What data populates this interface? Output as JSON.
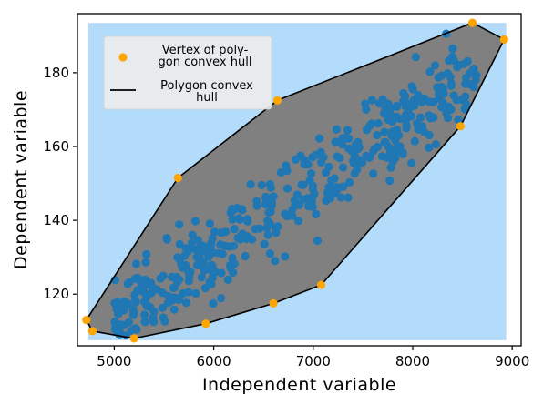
{
  "chart_data": {
    "type": "scatter",
    "xlabel": "Independent variable",
    "ylabel": "Dependent variable",
    "xlim": [
      4630,
      9090
    ],
    "ylim": [
      106,
      196
    ],
    "xticks": [
      5000,
      6000,
      7000,
      8000,
      9000
    ],
    "yticks": [
      120,
      140,
      160,
      180
    ],
    "grid": false,
    "colors": {
      "points": "#1f77b4",
      "hull_fill": "#808080",
      "hull_edge": "#000000",
      "vertex": "#ffa500",
      "region": "#b3dcfb"
    },
    "region": {
      "x": [
        4740,
        8940
      ],
      "y": [
        107.5,
        193.5
      ]
    },
    "legend": {
      "position": "upper left",
      "entries": [
        {
          "marker": "dot",
          "lines": [
            "Vertex of poly-",
            "gon convex hull"
          ]
        },
        {
          "marker": "line",
          "lines": [
            "Polygon convex",
            "hull"
          ]
        }
      ]
    },
    "hull_vertices": [
      [
        4720,
        113
      ],
      [
        4780,
        110
      ],
      [
        5200,
        108
      ],
      [
        5920,
        112
      ],
      [
        6600,
        117.5
      ],
      [
        7080,
        122.5
      ],
      [
        8480,
        165.5
      ],
      [
        8920,
        189
      ],
      [
        8600,
        193.5
      ],
      [
        6640,
        172.5
      ],
      [
        5640,
        151.5
      ]
    ]
  }
}
